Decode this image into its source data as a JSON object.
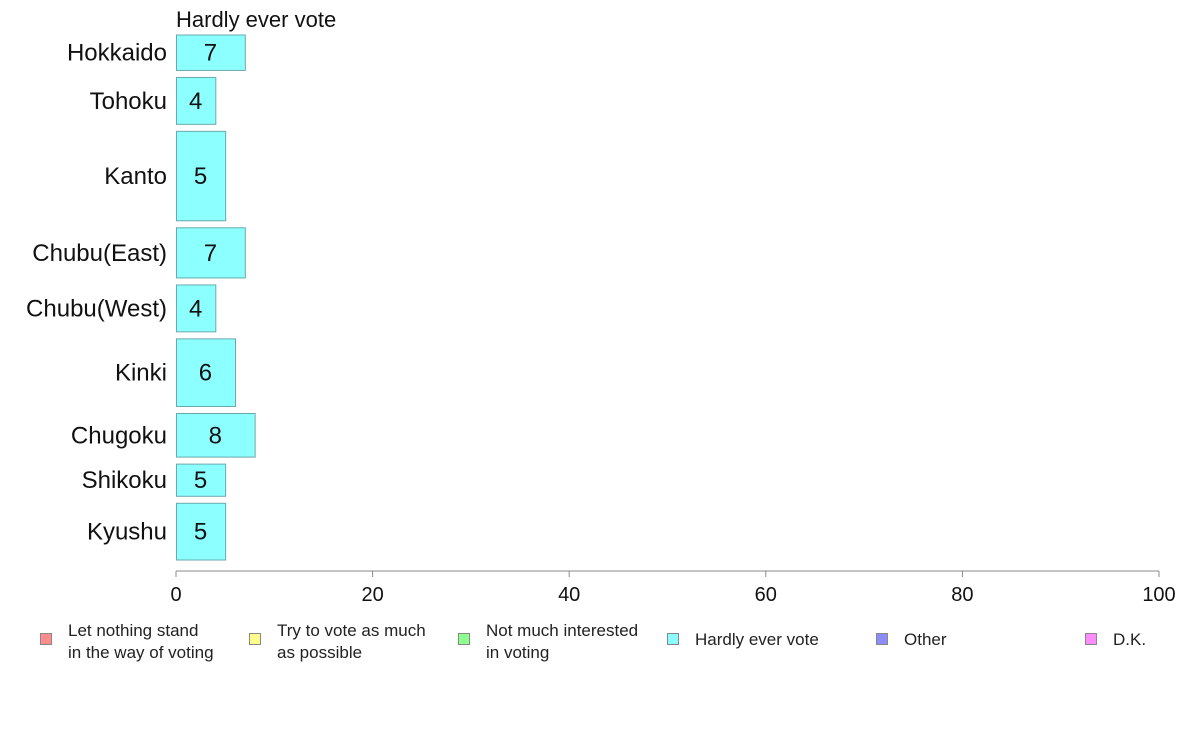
{
  "chart_data": {
    "type": "bar",
    "orientation": "horizontal",
    "title": "Hardly ever vote",
    "categories": [
      "Hokkaido",
      "Tohoku",
      "Kanto",
      "Chubu(East)",
      "Chubu(West)",
      "Kinki",
      "Chugoku",
      "Shikoku",
      "Kyushu"
    ],
    "values": [
      7,
      4,
      5,
      7,
      4,
      6,
      8,
      5,
      5
    ],
    "bar_weights": [
      0.65,
      0.86,
      1.64,
      0.92,
      0.86,
      1.24,
      0.8,
      0.59,
      1.04
    ],
    "xlim": [
      0,
      100
    ],
    "xticks": [
      "0",
      "20",
      "40",
      "60",
      "80",
      "100"
    ],
    "bar_color": "#8cffff",
    "grid": false
  },
  "legend": {
    "placement": "bottom",
    "items": [
      {
        "label": "Let nothing stand\nin the way of voting",
        "color": "#ff8c8c"
      },
      {
        "label": "Try to vote as much\nas possible",
        "color": "#ffff8c"
      },
      {
        "label": "Not much interested\nin voting",
        "color": "#8cff8c"
      },
      {
        "label": "Hardly ever vote",
        "color": "#8cffff"
      },
      {
        "label": "Other",
        "color": "#8c8cff"
      },
      {
        "label": "D.K.",
        "color": "#ff8cff"
      }
    ]
  }
}
